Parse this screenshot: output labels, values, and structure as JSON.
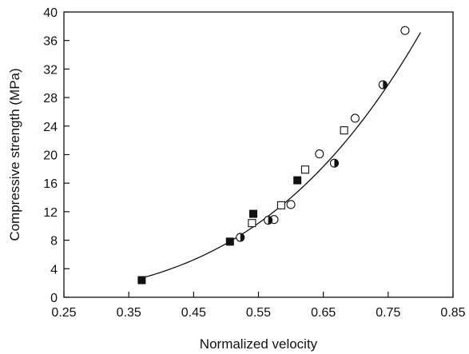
{
  "chart_data": {
    "type": "scatter",
    "title": "",
    "xlabel": "Normalized velocity",
    "ylabel": "Compressive strength (MPa)",
    "xlim": [
      0.25,
      0.85
    ],
    "ylim": [
      0,
      40
    ],
    "xticks": [
      "0.25",
      "0.35",
      "0.45",
      "0.55",
      "0.65",
      "0.75",
      "0.85"
    ],
    "yticks": [
      "0",
      "4",
      "8",
      "12",
      "16",
      "20",
      "24",
      "28",
      "32",
      "36",
      "40"
    ],
    "grid": false,
    "legend": "none",
    "series": [
      {
        "marker": "filled-square",
        "points": [
          [
            0.37,
            2.4
          ],
          [
            0.506,
            7.8
          ],
          [
            0.542,
            11.7
          ],
          [
            0.61,
            16.4
          ]
        ]
      },
      {
        "marker": "open-square",
        "points": [
          [
            0.54,
            10.4
          ],
          [
            0.585,
            12.9
          ],
          [
            0.622,
            17.9
          ],
          [
            0.682,
            23.4
          ]
        ]
      },
      {
        "marker": "open-circle",
        "points": [
          [
            0.574,
            10.9
          ],
          [
            0.6,
            13.0
          ],
          [
            0.644,
            20.1
          ],
          [
            0.699,
            25.1
          ],
          [
            0.776,
            37.4
          ]
        ]
      },
      {
        "marker": "half-filled-circle",
        "points": [
          [
            0.522,
            8.4
          ],
          [
            0.565,
            10.8
          ],
          [
            0.667,
            18.8
          ],
          [
            0.742,
            29.8
          ]
        ]
      }
    ],
    "fit_curve": {
      "type": "power",
      "coef": 79.3,
      "exponent": 3.4,
      "x_range": [
        0.37,
        0.8
      ]
    }
  }
}
